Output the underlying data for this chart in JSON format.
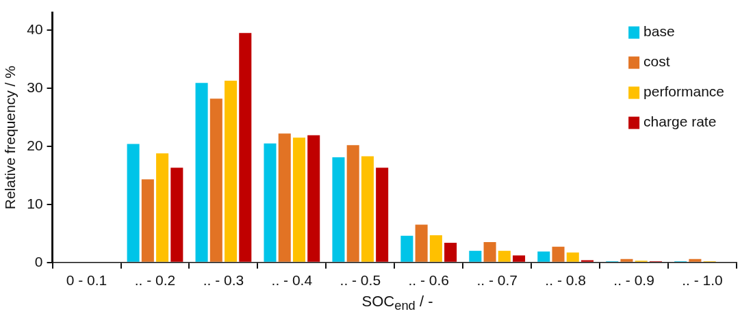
{
  "chart_data": {
    "type": "bar",
    "xlabel": "SOC$_{end}$ / -",
    "ylabel": "Relative frequency / %",
    "categories": [
      "0 - 0.1",
      ".. - 0.2",
      ".. - 0.3",
      ".. - 0.4",
      ".. - 0.5",
      ".. - 0.6",
      ".. - 0.7",
      ".. - 0.8",
      ".. - 0.9",
      ".. - 1.0"
    ],
    "series": [
      {
        "name": "base",
        "color": "#00c4e8",
        "values": [
          0,
          20.4,
          30.9,
          20.5,
          18.1,
          4.6,
          2.0,
          1.9,
          0.2,
          0.2
        ]
      },
      {
        "name": "cost",
        "color": "#e27324",
        "values": [
          0,
          14.3,
          28.2,
          22.2,
          20.2,
          6.5,
          3.5,
          2.7,
          0.6,
          0.6
        ]
      },
      {
        "name": "performance",
        "color": "#ffc000",
        "values": [
          0,
          18.8,
          31.3,
          21.5,
          18.3,
          4.7,
          2.0,
          1.7,
          0.3,
          0.2
        ]
      },
      {
        "name": "charge rate",
        "color": "#c00000",
        "values": [
          0,
          16.3,
          39.5,
          21.9,
          16.3,
          3.4,
          1.2,
          0.4,
          0.2,
          0
        ]
      }
    ],
    "ylim": [
      0,
      43
    ],
    "yticks": [
      0,
      10,
      20,
      30,
      40
    ],
    "grid": false,
    "legend": "top right"
  }
}
